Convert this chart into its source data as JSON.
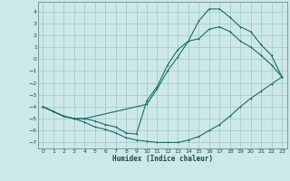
{
  "xlabel": "Humidex (Indice chaleur)",
  "bg_color": "#cce8e8",
  "grid_color": "#aacccc",
  "line_color": "#1a6b6b",
  "xlim": [
    -0.5,
    23.5
  ],
  "ylim": [
    -7.5,
    4.8
  ],
  "xticks": [
    0,
    1,
    2,
    3,
    4,
    5,
    6,
    7,
    8,
    9,
    10,
    11,
    12,
    13,
    14,
    15,
    16,
    17,
    18,
    19,
    20,
    21,
    22,
    23
  ],
  "yticks": [
    -7,
    -6,
    -5,
    -4,
    -3,
    -2,
    -1,
    0,
    1,
    2,
    3,
    4
  ],
  "series1_x": [
    0,
    1,
    2,
    3,
    4,
    5,
    6,
    7,
    8,
    9,
    10,
    11,
    12,
    13,
    14,
    15,
    16,
    17,
    18,
    19,
    20,
    21,
    22,
    23
  ],
  "series1_y": [
    -4.0,
    -4.4,
    -4.8,
    -5.0,
    -5.3,
    -5.7,
    -5.9,
    -6.2,
    -6.6,
    -6.8,
    -6.9,
    -7.0,
    -7.0,
    -7.0,
    -6.8,
    -6.5,
    -6.0,
    -5.5,
    -4.8,
    -4.0,
    -3.3,
    -2.7,
    -2.1,
    -1.5
  ],
  "series2_x": [
    0,
    1,
    2,
    3,
    4,
    10,
    11,
    12,
    13,
    14,
    15,
    16,
    17,
    18,
    19,
    20,
    21,
    22,
    23
  ],
  "series2_y": [
    -4.0,
    -4.4,
    -4.8,
    -5.0,
    -5.0,
    -3.8,
    -2.5,
    -1.0,
    0.2,
    1.5,
    3.2,
    4.2,
    4.2,
    3.5,
    2.7,
    2.3,
    1.2,
    0.3,
    -1.5
  ],
  "series3_x": [
    0,
    1,
    2,
    3,
    4,
    5,
    6,
    7,
    8,
    9,
    10,
    11,
    12,
    13,
    14,
    15,
    16,
    17,
    18,
    19,
    20,
    21,
    22,
    23
  ],
  "series3_y": [
    -4.0,
    -4.4,
    -4.8,
    -5.0,
    -5.0,
    -5.2,
    -5.5,
    -5.7,
    -6.2,
    -6.3,
    -3.5,
    -2.3,
    -0.5,
    0.8,
    1.5,
    1.7,
    2.5,
    2.7,
    2.3,
    1.5,
    1.0,
    0.3,
    -0.5,
    -1.5
  ]
}
